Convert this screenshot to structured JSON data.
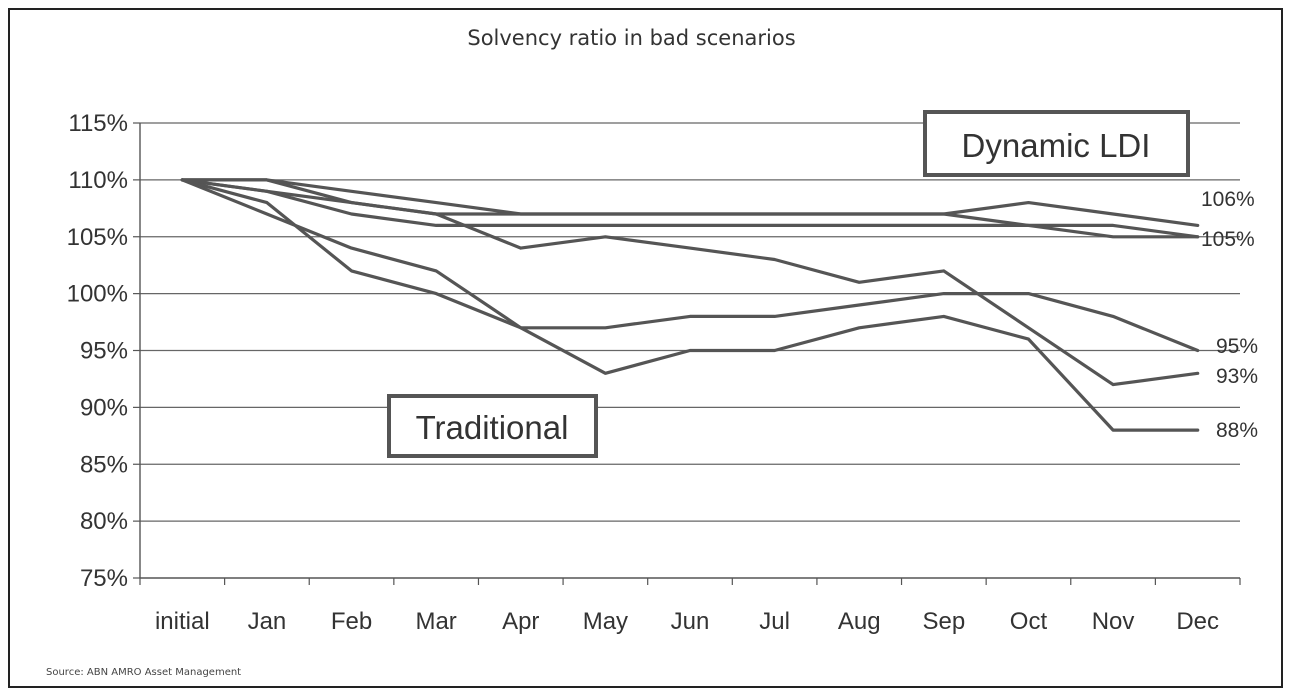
{
  "chart_data": {
    "type": "line",
    "title": "Solvency ratio in bad scenarios",
    "xlabel": "",
    "ylabel": "",
    "categories": [
      "initial",
      "Jan",
      "Feb",
      "Mar",
      "Apr",
      "May",
      "Jun",
      "Jul",
      "Aug",
      "Sep",
      "Oct",
      "Nov",
      "Dec"
    ],
    "y_ticks": [
      "75%",
      "80%",
      "85%",
      "90%",
      "95%",
      "100%",
      "105%",
      "110%",
      "115%"
    ],
    "ylim": [
      75,
      115
    ],
    "grid": true,
    "legend": "none",
    "series": [
      {
        "values": [
          110,
          110,
          109,
          108,
          107,
          107,
          107,
          107,
          107,
          107,
          108,
          107,
          106
        ]
      },
      {
        "values": [
          110,
          109,
          108,
          107,
          107,
          107,
          107,
          107,
          107,
          107,
          106,
          105,
          105
        ]
      },
      {
        "values": [
          110,
          109,
          107,
          106,
          106,
          106,
          106,
          106,
          106,
          106,
          106,
          106,
          105
        ]
      },
      {
        "values": [
          110,
          108,
          102,
          100,
          97,
          97,
          98,
          98,
          99,
          100,
          100,
          98,
          95
        ]
      },
      {
        "values": [
          110,
          107,
          104,
          102,
          97,
          93,
          95,
          95,
          97,
          98,
          96,
          88,
          88
        ]
      },
      {
        "values": [
          110,
          110,
          108,
          107,
          104,
          105,
          104,
          103,
          101,
          102,
          97,
          92,
          93
        ]
      }
    ],
    "end_labels": [
      "106%",
      "105%",
      "95%",
      "93%",
      "88%"
    ],
    "annotations": [
      "Dynamic LDI",
      "Traditional"
    ],
    "line_color": "#555555",
    "grid_color": "#666666"
  },
  "source": "Source: ABN AMRO Asset Management"
}
